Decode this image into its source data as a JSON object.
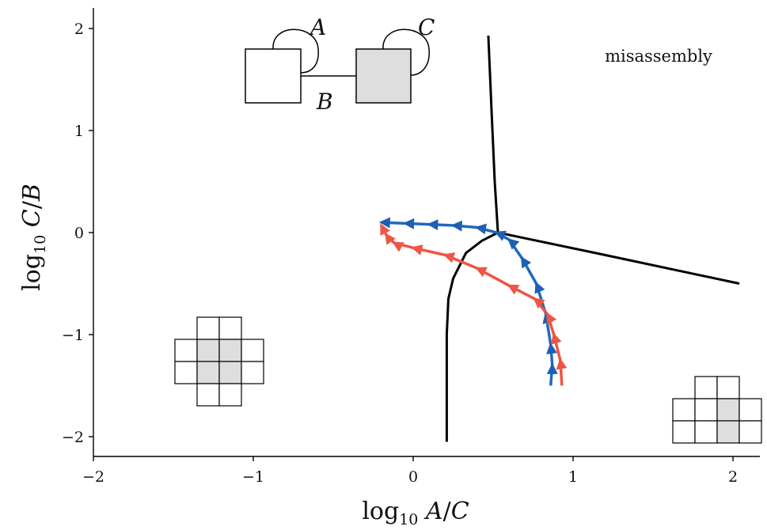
{
  "chart_data": {
    "type": "line",
    "title": "",
    "xlabel": "log10 A/C",
    "ylabel": "log10 C/B",
    "xlim": [
      -2,
      2.2
    ],
    "ylim": [
      -2.2,
      2.2
    ],
    "xticks": [
      -2,
      -1,
      0,
      1,
      2
    ],
    "yticks": [
      -2,
      -1,
      0,
      1,
      2
    ],
    "grid": false,
    "annotations": [
      {
        "text": "misassembly",
        "x": 1.92,
        "y": 1.72
      }
    ],
    "diagram_labels": [
      "A",
      "B",
      "C"
    ],
    "boundaries": [
      {
        "name": "boundary-upper",
        "color": "#000000",
        "points": [
          [
            0.47,
            1.93
          ],
          [
            0.49,
            1.2
          ],
          [
            0.51,
            0.5
          ],
          [
            0.53,
            0.0
          ]
        ]
      },
      {
        "name": "boundary-right",
        "color": "#000000",
        "points": [
          [
            0.53,
            0.0
          ],
          [
            1.2,
            -0.22
          ],
          [
            2.04,
            -0.5
          ]
        ]
      },
      {
        "name": "boundary-lower",
        "color": "#000000",
        "points": [
          [
            0.53,
            0.0
          ],
          [
            0.43,
            -0.08
          ],
          [
            0.33,
            -0.2
          ],
          [
            0.25,
            -0.45
          ],
          [
            0.22,
            -0.65
          ],
          [
            0.21,
            -1.0
          ],
          [
            0.21,
            -1.5
          ],
          [
            0.21,
            -2.05
          ]
        ]
      }
    ],
    "series": [
      {
        "name": "",
        "color_start": "#1f3d9c",
        "color_end": "#25b3e0",
        "points": [
          [
            0.86,
            -1.5
          ],
          [
            0.87,
            -1.3
          ],
          [
            0.86,
            -1.1
          ],
          [
            0.83,
            -0.8
          ],
          [
            0.77,
            -0.5
          ],
          [
            0.68,
            -0.25
          ],
          [
            0.6,
            -0.07
          ],
          [
            0.52,
            0.0
          ],
          [
            0.4,
            0.05
          ],
          [
            0.25,
            0.07
          ],
          [
            0.1,
            0.08
          ],
          [
            -0.05,
            0.09
          ],
          [
            -0.2,
            0.1
          ]
        ]
      },
      {
        "name": "",
        "color_start": "#ff7058",
        "color_end": "#e84b3c",
        "points": [
          [
            0.93,
            -1.5
          ],
          [
            0.92,
            -1.25
          ],
          [
            0.88,
            -1.0
          ],
          [
            0.84,
            -0.8
          ],
          [
            0.76,
            -0.65
          ],
          [
            0.6,
            -0.52
          ],
          [
            0.4,
            -0.35
          ],
          [
            0.2,
            -0.22
          ],
          [
            0.0,
            -0.15
          ],
          [
            -0.12,
            -0.1
          ],
          [
            -0.17,
            -0.02
          ],
          [
            -0.2,
            0.07
          ]
        ]
      }
    ],
    "insets": [
      {
        "name": "two-node-diagram",
        "nodes": [
          {
            "fill": "#ffffff"
          },
          {
            "fill": "#dedede"
          }
        ]
      },
      {
        "name": "cross-lattice",
        "fill_shaded": "#dedede"
      },
      {
        "name": "stair-lattice",
        "fill_shaded": "#dedede"
      }
    ]
  }
}
